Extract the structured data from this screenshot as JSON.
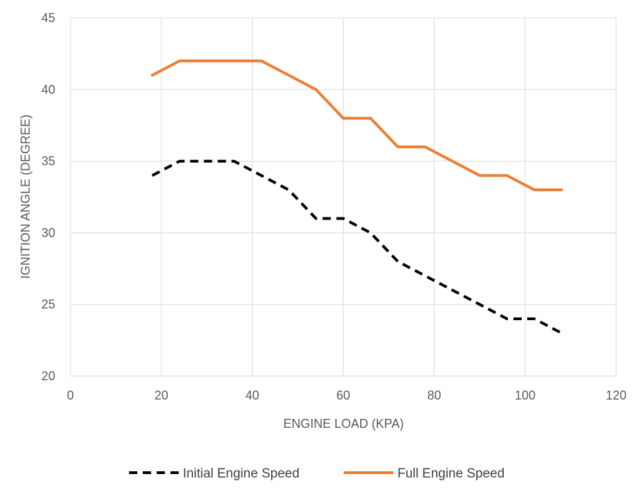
{
  "chart_data": {
    "type": "line",
    "title": "",
    "xlabel": "ENGINE LOAD (KPA)",
    "ylabel": "IGNITION ANGLE (DEGREE)",
    "xlim": [
      0,
      120
    ],
    "ylim": [
      20,
      45
    ],
    "x_ticks": [
      "0",
      "20",
      "40",
      "60",
      "80",
      "100",
      "120"
    ],
    "y_ticks": [
      "20",
      "25",
      "30",
      "35",
      "40",
      "45"
    ],
    "grid": true,
    "legend_position": "bottom",
    "series": [
      {
        "name": "Initial Engine Speed",
        "color": "#000000",
        "style": "dashed",
        "x": [
          18,
          24,
          30,
          36,
          42,
          48,
          54,
          60,
          66,
          72,
          78,
          84,
          90,
          96,
          102,
          108
        ],
        "y": [
          34,
          35,
          35,
          35,
          34,
          33,
          31,
          31,
          30,
          28,
          27,
          26,
          25,
          24,
          24,
          23
        ]
      },
      {
        "name": "Full Engine Speed",
        "color": "#ED7D31",
        "style": "solid",
        "x": [
          18,
          24,
          30,
          36,
          42,
          48,
          54,
          60,
          66,
          72,
          78,
          84,
          90,
          96,
          102,
          108
        ],
        "y": [
          41,
          42,
          42,
          42,
          42,
          41,
          40,
          38,
          38,
          36,
          36,
          35,
          34,
          34,
          33,
          33
        ]
      }
    ]
  }
}
